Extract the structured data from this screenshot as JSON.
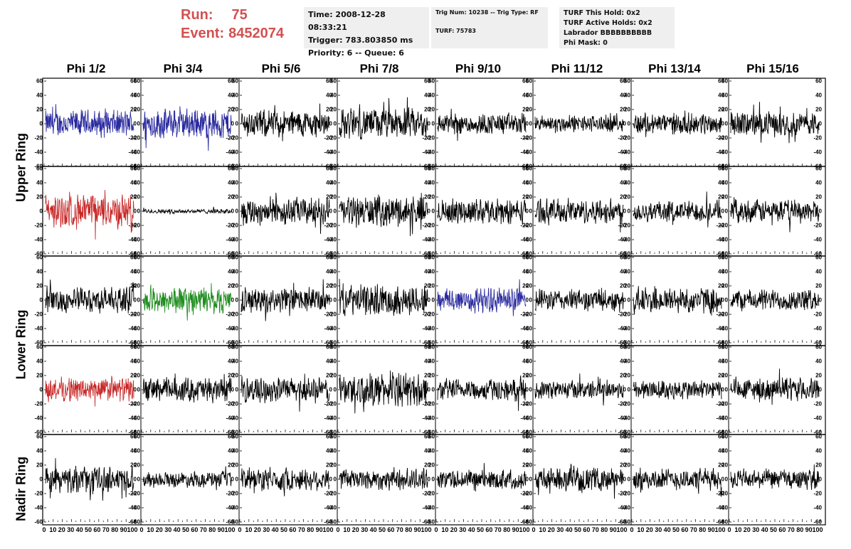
{
  "header": {
    "run_label": "Run:",
    "run_value": "75",
    "event_label": "Event:",
    "event_value": "8452074",
    "time": "Time: 2008-12-28 08:33:21",
    "trigger": "Trigger: 783.803850 ms",
    "priority": "Priority: 6 -- Queue: 6",
    "trig_num": "Trig Num: 10238 -- Trig Type: RF",
    "turf": "TURF: 75783",
    "turf_this_hold": "TURF This Hold: 0x2",
    "turf_active_holds": "TURF Active Holds: 0x2",
    "labrador": "Labrador BBBBBBBBBB",
    "phi_mask": "Phi Mask: 0"
  },
  "columns": [
    "Phi 1/2",
    "Phi 3/4",
    "Phi 5/6",
    "Phi 7/8",
    "Phi 9/10",
    "Phi 11/12",
    "Phi 13/14",
    "Phi 15/16"
  ],
  "rows": [
    "Upper Ring",
    "Lower Ring",
    "Nadir Ring"
  ],
  "colors": {
    "default": "#000000",
    "blue": "#2a2aa0",
    "red": "#c82828",
    "green": "#1e8c1e",
    "run_text": "#d35050",
    "info_bg": "#efefef"
  },
  "chart_data": {
    "type": "line",
    "panel_grid": {
      "rows": 5,
      "cols": 8
    },
    "ylim": [
      -60,
      60
    ],
    "xlim": [
      0,
      100
    ],
    "y_ticks": [
      "60",
      "40",
      "20",
      "0",
      "-20",
      "-40",
      "-60"
    ],
    "x_ticks": [
      "0",
      "10",
      "20",
      "30",
      "40",
      "50",
      "60",
      "70",
      "80",
      "90",
      "100"
    ],
    "panels": [
      {
        "row": 0,
        "col": 0,
        "color": "blue",
        "amp": 18
      },
      {
        "row": 0,
        "col": 1,
        "color": "blue",
        "amp": 20
      },
      {
        "row": 0,
        "col": 2,
        "color": "default",
        "amp": 18
      },
      {
        "row": 0,
        "col": 3,
        "color": "default",
        "amp": 20
      },
      {
        "row": 0,
        "col": 4,
        "color": "default",
        "amp": 14
      },
      {
        "row": 0,
        "col": 5,
        "color": "default",
        "amp": 11
      },
      {
        "row": 0,
        "col": 6,
        "color": "default",
        "amp": 14
      },
      {
        "row": 0,
        "col": 7,
        "color": "default",
        "amp": 16
      },
      {
        "row": 1,
        "col": 0,
        "color": "red",
        "amp": 22
      },
      {
        "row": 1,
        "col": 1,
        "color": "default",
        "amp": 3
      },
      {
        "row": 1,
        "col": 2,
        "color": "default",
        "amp": 18
      },
      {
        "row": 1,
        "col": 3,
        "color": "default",
        "amp": 20
      },
      {
        "row": 1,
        "col": 4,
        "color": "default",
        "amp": 16
      },
      {
        "row": 1,
        "col": 5,
        "color": "default",
        "amp": 16
      },
      {
        "row": 1,
        "col": 6,
        "color": "default",
        "amp": 14
      },
      {
        "row": 1,
        "col": 7,
        "color": "default",
        "amp": 15
      },
      {
        "row": 2,
        "col": 0,
        "color": "default",
        "amp": 16
      },
      {
        "row": 2,
        "col": 1,
        "color": "green",
        "amp": 18
      },
      {
        "row": 2,
        "col": 2,
        "color": "default",
        "amp": 16
      },
      {
        "row": 2,
        "col": 3,
        "color": "default",
        "amp": 20
      },
      {
        "row": 2,
        "col": 4,
        "color": "blue",
        "amp": 17
      },
      {
        "row": 2,
        "col": 5,
        "color": "default",
        "amp": 14
      },
      {
        "row": 2,
        "col": 6,
        "color": "default",
        "amp": 17
      },
      {
        "row": 2,
        "col": 7,
        "color": "default",
        "amp": 14
      },
      {
        "row": 3,
        "col": 0,
        "color": "red",
        "amp": 16
      },
      {
        "row": 3,
        "col": 1,
        "color": "default",
        "amp": 16
      },
      {
        "row": 3,
        "col": 2,
        "color": "default",
        "amp": 16
      },
      {
        "row": 3,
        "col": 3,
        "color": "default",
        "amp": 22
      },
      {
        "row": 3,
        "col": 4,
        "color": "default",
        "amp": 14
      },
      {
        "row": 3,
        "col": 5,
        "color": "default",
        "amp": 12
      },
      {
        "row": 3,
        "col": 6,
        "color": "default",
        "amp": 13
      },
      {
        "row": 3,
        "col": 7,
        "color": "default",
        "amp": 15
      },
      {
        "row": 4,
        "col": 0,
        "color": "default",
        "amp": 17
      },
      {
        "row": 4,
        "col": 1,
        "color": "default",
        "amp": 10
      },
      {
        "row": 4,
        "col": 2,
        "color": "default",
        "amp": 15
      },
      {
        "row": 4,
        "col": 3,
        "color": "default",
        "amp": 14
      },
      {
        "row": 4,
        "col": 4,
        "color": "default",
        "amp": 13
      },
      {
        "row": 4,
        "col": 5,
        "color": "default",
        "amp": 15
      },
      {
        "row": 4,
        "col": 6,
        "color": "default",
        "amp": 14
      },
      {
        "row": 4,
        "col": 7,
        "color": "default",
        "amp": 13
      }
    ]
  }
}
